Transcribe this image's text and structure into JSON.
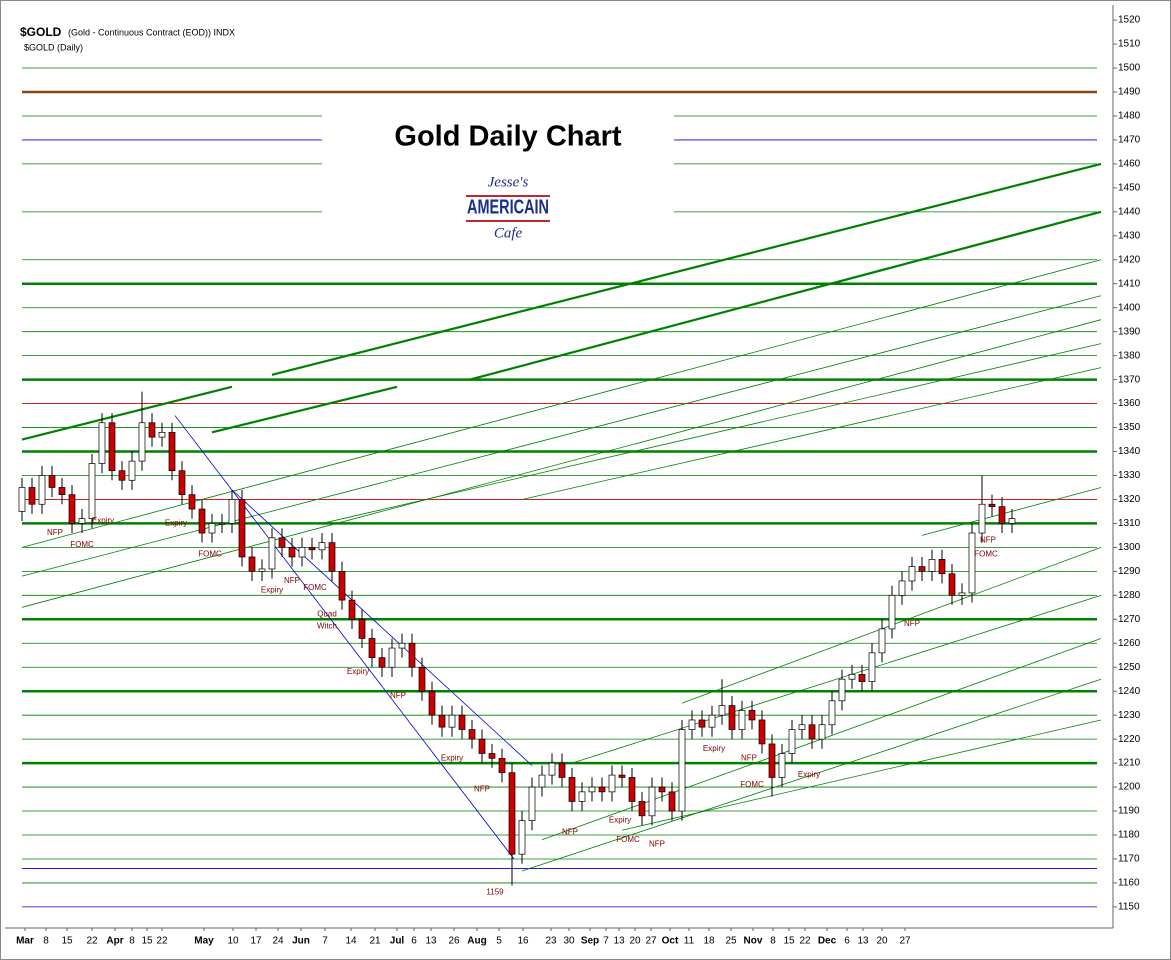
{
  "chart_data": {
    "type": "candlestick",
    "symbol": "$GOLD",
    "description": "(Gold - Continuous Contract (EOD)) INDX",
    "subtitle": "$GOLD (Daily)",
    "title": "Gold Daily Chart",
    "logo": [
      "Jesse's",
      "AMERICAIN",
      "Cafe"
    ],
    "open": [
      1315,
      1325,
      1318,
      1330,
      1325,
      1322,
      1310,
      1312,
      1335,
      1352,
      1332,
      1328,
      1336,
      1352,
      1346,
      1348,
      1332,
      1322,
      1316,
      1306,
      1310,
      1310,
      1320,
      1296,
      1290,
      1291,
      1304,
      1300,
      1296,
      1300,
      1299,
      1302,
      1290,
      1278,
      1270,
      1262,
      1254,
      1250,
      1258,
      1260,
      1250,
      1240,
      1230,
      1225,
      1230,
      1224,
      1220,
      1214,
      1212,
      1206,
      1172,
      1186,
      1200,
      1205,
      1210,
      1204,
      1194,
      1198,
      1200,
      1198,
      1205,
      1204,
      1194,
      1188,
      1200,
      1198,
      1190,
      1224,
      1228,
      1225,
      1230,
      1234,
      1224,
      1232,
      1228,
      1218,
      1204,
      1214,
      1224,
      1226,
      1220,
      1226,
      1236,
      1245,
      1247,
      1244,
      1256,
      1266,
      1280,
      1286,
      1292,
      1290,
      1295,
      1289,
      1280,
      1281,
      1306,
      1318,
      1317,
      1310
    ],
    "high": [
      1329,
      1329,
      1334,
      1334,
      1329,
      1326,
      1316,
      1339,
      1356,
      1356,
      1336,
      1340,
      1365,
      1356,
      1352,
      1352,
      1336,
      1326,
      1320,
      1314,
      1314,
      1324,
      1324,
      1300,
      1295,
      1308,
      1308,
      1304,
      1304,
      1304,
      1306,
      1306,
      1294,
      1282,
      1274,
      1266,
      1258,
      1262,
      1264,
      1264,
      1254,
      1244,
      1234,
      1234,
      1234,
      1228,
      1224,
      1218,
      1216,
      1210,
      1190,
      1204,
      1209,
      1214,
      1214,
      1208,
      1202,
      1204,
      1204,
      1209,
      1209,
      1208,
      1198,
      1204,
      1204,
      1202,
      1228,
      1232,
      1232,
      1234,
      1245,
      1238,
      1236,
      1236,
      1232,
      1222,
      1218,
      1228,
      1230,
      1230,
      1230,
      1240,
      1249,
      1251,
      1251,
      1260,
      1270,
      1284,
      1290,
      1296,
      1296,
      1299,
      1299,
      1293,
      1285,
      1310,
      1330,
      1322,
      1321,
      1316
    ],
    "low": [
      1311,
      1314,
      1314,
      1321,
      1318,
      1306,
      1306,
      1308,
      1331,
      1328,
      1324,
      1324,
      1332,
      1342,
      1342,
      1328,
      1318,
      1312,
      1302,
      1302,
      1306,
      1306,
      1292,
      1286,
      1286,
      1287,
      1296,
      1292,
      1292,
      1295,
      1295,
      1286,
      1274,
      1266,
      1258,
      1250,
      1246,
      1246,
      1254,
      1246,
      1236,
      1226,
      1221,
      1221,
      1220,
      1216,
      1210,
      1208,
      1202,
      1159,
      1168,
      1182,
      1196,
      1201,
      1200,
      1190,
      1190,
      1194,
      1194,
      1194,
      1200,
      1190,
      1184,
      1184,
      1194,
      1186,
      1186,
      1220,
      1221,
      1221,
      1226,
      1220,
      1220,
      1224,
      1214,
      1196,
      1200,
      1210,
      1220,
      1216,
      1216,
      1222,
      1232,
      1241,
      1240,
      1240,
      1252,
      1262,
      1276,
      1282,
      1286,
      1286,
      1285,
      1276,
      1276,
      1277,
      1302,
      1313,
      1306,
      1306
    ],
    "close": [
      1325,
      1318,
      1330,
      1325,
      1322,
      1310,
      1312,
      1335,
      1352,
      1332,
      1328,
      1336,
      1352,
      1346,
      1348,
      1332,
      1322,
      1316,
      1306,
      1310,
      1310,
      1320,
      1296,
      1290,
      1291,
      1304,
      1300,
      1296,
      1300,
      1299,
      1302,
      1290,
      1278,
      1270,
      1262,
      1254,
      1250,
      1258,
      1260,
      1250,
      1240,
      1230,
      1225,
      1230,
      1224,
      1220,
      1214,
      1212,
      1206,
      1172,
      1186,
      1200,
      1205,
      1210,
      1204,
      1194,
      1198,
      1200,
      1198,
      1205,
      1204,
      1194,
      1188,
      1200,
      1198,
      1190,
      1224,
      1228,
      1225,
      1230,
      1234,
      1224,
      1232,
      1228,
      1218,
      1204,
      1214,
      1224,
      1226,
      1220,
      1226,
      1236,
      1245,
      1247,
      1244,
      1256,
      1266,
      1280,
      1286,
      1292,
      1290,
      1295,
      1289,
      1280,
      1281,
      1306,
      1318,
      1317,
      1310,
      1312
    ],
    "up_color": "#ffffff",
    "down_color": "#cc0000",
    "xlim": [
      -0.4,
      109.1
    ],
    "ylim": [
      1141.2,
      1526.3
    ],
    "yticks": [
      1150,
      1160,
      1170,
      1180,
      1190,
      1200,
      1210,
      1220,
      1230,
      1240,
      1250,
      1260,
      1270,
      1280,
      1290,
      1300,
      1310,
      1320,
      1330,
      1340,
      1350,
      1360,
      1370,
      1380,
      1390,
      1400,
      1410,
      1420,
      1430,
      1440,
      1450,
      1460,
      1470,
      1480,
      1490,
      1500,
      1510,
      1520
    ],
    "xticks": [
      {
        "value": 0.3,
        "label": "Mar"
      },
      {
        "value": 2.4,
        "label": "8"
      },
      {
        "value": 4.5,
        "label": "15"
      },
      {
        "value": 7,
        "label": "22"
      },
      {
        "value": 9.3,
        "label": "Apr"
      },
      {
        "value": 11,
        "label": "8"
      },
      {
        "value": 12.5,
        "label": "15"
      },
      {
        "value": 14,
        "label": "22"
      },
      {
        "value": 18.2,
        "label": "May"
      },
      {
        "value": 21.1,
        "label": "10"
      },
      {
        "value": 23.4,
        "label": "17"
      },
      {
        "value": 25.6,
        "label": "24"
      },
      {
        "value": 27.9,
        "label": "Jun"
      },
      {
        "value": 30.3,
        "label": "7"
      },
      {
        "value": 32.9,
        "label": "14"
      },
      {
        "value": 35.3,
        "label": "21"
      },
      {
        "value": 37.5,
        "label": "Jul"
      },
      {
        "value": 39.2,
        "label": "6"
      },
      {
        "value": 40.9,
        "label": "13"
      },
      {
        "value": 43.2,
        "label": "26"
      },
      {
        "value": 45.5,
        "label": "Aug"
      },
      {
        "value": 47.7,
        "label": "5"
      },
      {
        "value": 50.1,
        "label": "16"
      },
      {
        "value": 52.9,
        "label": "23"
      },
      {
        "value": 54.7,
        "label": "30"
      },
      {
        "value": 56.8,
        "label": "Sep"
      },
      {
        "value": 58.4,
        "label": "7"
      },
      {
        "value": 59.7,
        "label": "13"
      },
      {
        "value": 61.3,
        "label": "20"
      },
      {
        "value": 62.9,
        "label": "27"
      },
      {
        "value": 64.8,
        "label": "Oct"
      },
      {
        "value": 66.7,
        "label": "11"
      },
      {
        "value": 68.7,
        "label": "18"
      },
      {
        "value": 70.9,
        "label": "25"
      },
      {
        "value": 73.1,
        "label": "Nov"
      },
      {
        "value": 75.1,
        "label": "8"
      },
      {
        "value": 76.7,
        "label": "15"
      },
      {
        "value": 78.3,
        "label": "22"
      },
      {
        "value": 80.5,
        "label": "Dec"
      },
      {
        "value": 82.5,
        "label": "6"
      },
      {
        "value": 84.1,
        "label": "13"
      },
      {
        "value": 86,
        "label": "20"
      },
      {
        "value": 88.3,
        "label": "27"
      }
    ],
    "levels": [
      {
        "value": 1500,
        "color": "#008000"
      },
      {
        "value": 1490,
        "color": "#8b4513",
        "thick": true
      },
      {
        "value": 1480,
        "color": "#008000"
      },
      {
        "value": 1470,
        "color": "#0000cc"
      },
      {
        "value": 1460,
        "color": "#008000"
      },
      {
        "value": 1440,
        "color": "#008000"
      },
      {
        "value": 1420,
        "color": "#008000"
      },
      {
        "value": 1410,
        "color": "#008000",
        "thick": true
      },
      {
        "value": 1400,
        "color": "#008000"
      },
      {
        "value": 1390,
        "color": "#008000"
      },
      {
        "value": 1380,
        "color": "#008000"
      },
      {
        "value": 1370,
        "color": "#008000",
        "thick": true
      },
      {
        "value": 1360,
        "color": "#cc0000"
      },
      {
        "value": 1350,
        "color": "#008000"
      },
      {
        "value": 1340,
        "color": "#008000",
        "thick": true
      },
      {
        "value": 1330,
        "color": "#008000"
      },
      {
        "value": 1320,
        "color": "#cc0000"
      },
      {
        "value": 1310,
        "color": "#008000",
        "thick": true
      },
      {
        "value": 1300,
        "color": "#008000"
      },
      {
        "value": 1290,
        "color": "#008000"
      },
      {
        "value": 1280,
        "color": "#008000"
      },
      {
        "value": 1270,
        "color": "#008000",
        "thick": true
      },
      {
        "value": 1260,
        "color": "#008000"
      },
      {
        "value": 1250,
        "color": "#008000"
      },
      {
        "value": 1240,
        "color": "#008000",
        "thick": true
      },
      {
        "value": 1230,
        "color": "#008000"
      },
      {
        "value": 1220,
        "color": "#008000"
      },
      {
        "value": 1210,
        "color": "#008000",
        "thick": true
      },
      {
        "value": 1200,
        "color": "#008000"
      },
      {
        "value": 1190,
        "color": "#008000"
      },
      {
        "value": 1180,
        "color": "#008000"
      },
      {
        "value": 1170,
        "color": "#008000"
      },
      {
        "value": 1166,
        "color": "#0000cc"
      },
      {
        "value": 1160,
        "color": "#008000"
      },
      {
        "value": 1150,
        "color": "#0000cc"
      }
    ],
    "trendlines": [
      {
        "from": [
          25,
          1372
        ],
        "to": [
          107.9,
          1460
        ],
        "color": "#008000",
        "thick": true
      },
      {
        "from": [
          44.8,
          1370
        ],
        "to": [
          107.9,
          1440
        ],
        "color": "#008000",
        "thick": true
      },
      {
        "from": [
          0,
          1345
        ],
        "to": [
          21,
          1367
        ],
        "color": "#008000",
        "thick": true
      },
      {
        "from": [
          19,
          1348
        ],
        "to": [
          37.5,
          1367
        ],
        "color": "#008000",
        "thick": true
      },
      {
        "from": [
          0,
          1300
        ],
        "to": [
          107.9,
          1420
        ],
        "color": "#008000"
      },
      {
        "from": [
          0,
          1288
        ],
        "to": [
          107.9,
          1405
        ],
        "color": "#008000"
      },
      {
        "from": [
          0,
          1275
        ],
        "to": [
          107.9,
          1395
        ],
        "color": "#008000"
      },
      {
        "from": [
          30,
          1310
        ],
        "to": [
          107.9,
          1385
        ],
        "color": "#008000"
      },
      {
        "from": [
          50,
          1320
        ],
        "to": [
          107.9,
          1375
        ],
        "color": "#008000"
      },
      {
        "from": [
          90,
          1305
        ],
        "to": [
          107.9,
          1325
        ],
        "color": "#008000"
      },
      {
        "from": [
          66,
          1235
        ],
        "to": [
          107.9,
          1300
        ],
        "color": "#008000"
      },
      {
        "from": [
          55,
          1210
        ],
        "to": [
          107.9,
          1280
        ],
        "color": "#008000"
      },
      {
        "from": [
          52,
          1178
        ],
        "to": [
          107.9,
          1262
        ],
        "color": "#008000"
      },
      {
        "from": [
          50,
          1165
        ],
        "to": [
          107.9,
          1245
        ],
        "color": "#008000"
      },
      {
        "from": [
          60,
          1182
        ],
        "to": [
          107.9,
          1228
        ],
        "color": "#008000"
      },
      {
        "from": [
          15.3,
          1355
        ],
        "to": [
          49.2,
          1170
        ],
        "color": "#0000cc"
      },
      {
        "from": [
          21,
          1324
        ],
        "to": [
          51,
          1209
        ],
        "color": "#0000cc"
      }
    ],
    "annotations": [
      {
        "x": 3.3,
        "y": 1306,
        "text": "NFP"
      },
      {
        "x": 6,
        "y": 1301,
        "text": "FOMC"
      },
      {
        "x": 8.1,
        "y": 1311,
        "text": "Expiry"
      },
      {
        "x": 15.4,
        "y": 1310,
        "text": "Expiry"
      },
      {
        "x": 18.8,
        "y": 1297,
        "text": "FOMC"
      },
      {
        "x": 25,
        "y": 1282,
        "text": "Expiry"
      },
      {
        "x": 27,
        "y": 1286,
        "text": "NFP"
      },
      {
        "x": 29.3,
        "y": 1283,
        "text": "FOMC"
      },
      {
        "x": 30.5,
        "y": 1272,
        "text": "Quad"
      },
      {
        "x": 30.5,
        "y": 1267,
        "text": "Witch"
      },
      {
        "x": 33.6,
        "y": 1248,
        "text": "Expiry"
      },
      {
        "x": 37.6,
        "y": 1238,
        "text": "NFP"
      },
      {
        "x": 43,
        "y": 1212,
        "text": "Expiry"
      },
      {
        "x": 46,
        "y": 1199,
        "text": "NFP"
      },
      {
        "x": 47.3,
        "y": 1156,
        "text": "1159"
      },
      {
        "x": 54.8,
        "y": 1181,
        "text": "NFP"
      },
      {
        "x": 59.8,
        "y": 1186,
        "text": "Expiry"
      },
      {
        "x": 60.6,
        "y": 1178,
        "text": "FOMC"
      },
      {
        "x": 63.5,
        "y": 1176,
        "text": "NFP"
      },
      {
        "x": 69.2,
        "y": 1216,
        "text": "Expiry"
      },
      {
        "x": 72.7,
        "y": 1212,
        "text": "NFP"
      },
      {
        "x": 73,
        "y": 1201,
        "text": "FOMC"
      },
      {
        "x": 78.7,
        "y": 1205,
        "text": "Expiry"
      },
      {
        "x": 89,
        "y": 1268,
        "text": "NFP"
      },
      {
        "x": 96.6,
        "y": 1303,
        "text": "NFP"
      },
      {
        "x": 96.4,
        "y": 1297,
        "text": "FOMC"
      }
    ]
  }
}
